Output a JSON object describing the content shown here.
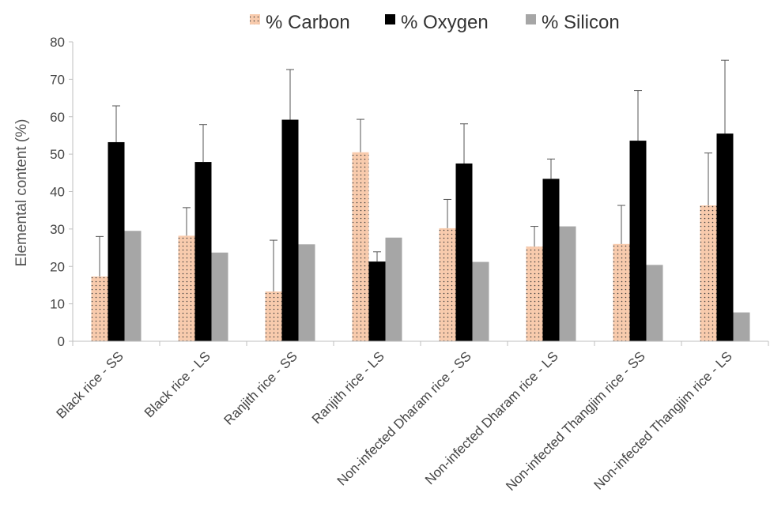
{
  "chart_data": {
    "type": "bar",
    "title": "",
    "xlabel": "",
    "ylabel": "Elemental content (%)",
    "ylim": [
      0,
      80
    ],
    "yticks": [
      0,
      10,
      20,
      30,
      40,
      50,
      60,
      70,
      80
    ],
    "grid": false,
    "legend_position": "top",
    "categories": [
      "Black rice - SS",
      "Black rice - LS",
      "Ranjith rice - SS",
      "Ranjith rice - LS",
      "Non-infected Dharam rice - SS",
      "Non-infected Dharam rice - LS",
      "Non-infected Thangjim rice - SS",
      "Non-infected Thangjim rice - LS"
    ],
    "series": [
      {
        "name": "% Carbon",
        "color": "#f8cbad",
        "pattern": "dotted",
        "values": [
          17.3,
          28.2,
          13.3,
          50.5,
          30.2,
          25.3,
          26.0,
          36.3
        ],
        "error": [
          10.7,
          7.5,
          13.7,
          8.8,
          7.7,
          5.4,
          10.3,
          14.0
        ]
      },
      {
        "name": "% Oxygen",
        "color": "#000000",
        "values": [
          53.2,
          47.9,
          59.2,
          21.3,
          47.5,
          43.4,
          53.6,
          55.5
        ],
        "error": [
          9.7,
          10.0,
          13.4,
          2.6,
          10.6,
          5.3,
          13.4,
          19.6
        ]
      },
      {
        "name": "% Silicon",
        "color": "#a6a6a6",
        "values": [
          29.5,
          23.7,
          25.9,
          27.7,
          21.2,
          30.7,
          20.4,
          7.7
        ],
        "error": [
          0,
          0,
          0,
          0,
          0,
          0,
          0,
          0
        ]
      }
    ]
  }
}
